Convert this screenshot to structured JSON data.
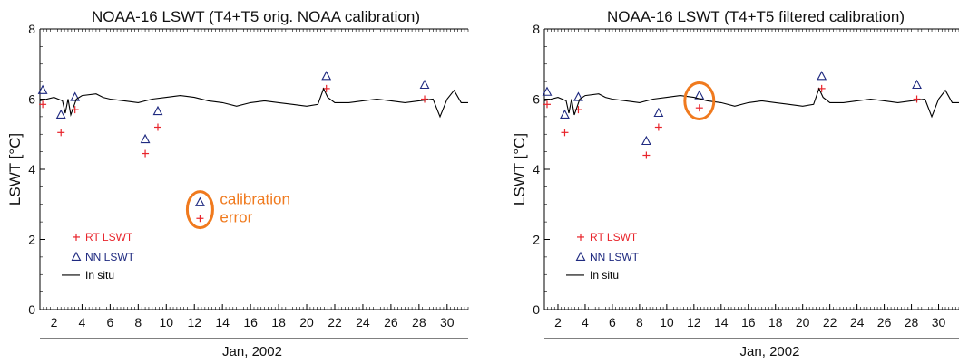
{
  "chart_data": [
    {
      "type": "scatter",
      "title": "NOAA-16 LSWT (T4+T5 orig. NOAA calibration)",
      "xlabel": "Jan, 2002",
      "ylabel": "LSWT [°C]",
      "xlim": [
        1,
        31.5
      ],
      "ylim": [
        0,
        8
      ],
      "xticks": [
        2,
        4,
        6,
        8,
        10,
        12,
        14,
        16,
        18,
        20,
        22,
        24,
        26,
        28,
        30
      ],
      "yticks": [
        0,
        2,
        4,
        6,
        8
      ],
      "legend_position": "lower-left",
      "annotation": {
        "text_line1": "calibration",
        "text_line2": "error",
        "x": 12.4,
        "y": 2.85,
        "color": "#f07a1e"
      },
      "series": [
        {
          "name": "RT LSWT",
          "marker": "plus",
          "color": "#e8242b",
          "x": [
            1.2,
            2.5,
            3.5,
            8.5,
            9.4,
            12.4,
            21.4,
            28.4
          ],
          "y": [
            5.85,
            5.05,
            5.7,
            4.45,
            5.2,
            2.6,
            6.3,
            6.0
          ]
        },
        {
          "name": "NN LSWT",
          "marker": "triangle",
          "color": "#1f2a80",
          "x": [
            1.2,
            2.5,
            3.5,
            8.5,
            9.4,
            12.4,
            21.4,
            28.4
          ],
          "y": [
            6.25,
            5.55,
            6.05,
            4.85,
            5.65,
            3.05,
            6.65,
            6.4
          ]
        },
        {
          "name": "In situ",
          "marker": "line",
          "color": "#000000",
          "x": [
            1.0,
            2.0,
            2.6,
            2.8,
            3.0,
            3.2,
            3.6,
            4.0,
            5.0,
            5.5,
            6.0,
            7.0,
            8.0,
            9.0,
            10.0,
            11.0,
            12.0,
            13.0,
            14.0,
            15.0,
            16.0,
            17.0,
            18.0,
            19.0,
            20.0,
            20.8,
            21.2,
            21.5,
            22.0,
            23.0,
            24.0,
            25.0,
            26.0,
            27.0,
            28.0,
            29.0,
            29.5,
            30.0,
            30.5,
            31.0,
            31.5
          ],
          "y": [
            5.95,
            6.05,
            5.95,
            5.6,
            6.0,
            5.55,
            6.0,
            6.1,
            6.15,
            6.05,
            6.0,
            5.95,
            5.9,
            6.0,
            6.05,
            6.1,
            6.05,
            5.95,
            5.9,
            5.8,
            5.9,
            5.95,
            5.9,
            5.85,
            5.8,
            5.85,
            6.3,
            6.05,
            5.9,
            5.9,
            5.95,
            6.0,
            5.95,
            5.9,
            5.95,
            6.0,
            5.5,
            6.0,
            6.25,
            5.9,
            5.9
          ]
        }
      ]
    },
    {
      "type": "scatter",
      "title": "NOAA-16 LSWT (T4+T5 filtered calibration)",
      "xlabel": "Jan, 2002",
      "ylabel": "LSWT [°C]",
      "xlim": [
        1,
        31.5
      ],
      "ylim": [
        0,
        8
      ],
      "xticks": [
        2,
        4,
        6,
        8,
        10,
        12,
        14,
        16,
        18,
        20,
        22,
        24,
        26,
        28,
        30
      ],
      "yticks": [
        0,
        2,
        4,
        6,
        8
      ],
      "legend_position": "lower-left",
      "highlight": {
        "x": 12.4,
        "y": 5.95,
        "color": "#f07a1e"
      },
      "series": [
        {
          "name": "RT LSWT",
          "marker": "plus",
          "color": "#e8242b",
          "x": [
            1.2,
            2.5,
            3.5,
            8.5,
            9.4,
            12.4,
            21.4,
            28.4
          ],
          "y": [
            5.85,
            5.05,
            5.7,
            4.4,
            5.2,
            5.75,
            6.3,
            6.0
          ]
        },
        {
          "name": "NN LSWT",
          "marker": "triangle",
          "color": "#1f2a80",
          "x": [
            1.2,
            2.5,
            3.5,
            8.5,
            9.4,
            12.4,
            21.4,
            28.4
          ],
          "y": [
            6.2,
            5.55,
            6.05,
            4.8,
            5.6,
            6.1,
            6.65,
            6.4
          ]
        },
        {
          "name": "In situ",
          "marker": "line",
          "color": "#000000",
          "x": [
            1.0,
            2.0,
            2.6,
            2.8,
            3.0,
            3.2,
            3.6,
            4.0,
            5.0,
            5.5,
            6.0,
            7.0,
            8.0,
            9.0,
            10.0,
            11.0,
            12.0,
            13.0,
            14.0,
            15.0,
            16.0,
            17.0,
            18.0,
            19.0,
            20.0,
            20.8,
            21.2,
            21.5,
            22.0,
            23.0,
            24.0,
            25.0,
            26.0,
            27.0,
            28.0,
            29.0,
            29.5,
            30.0,
            30.5,
            31.0,
            31.5
          ],
          "y": [
            5.95,
            6.05,
            5.95,
            5.6,
            6.0,
            5.55,
            6.0,
            6.1,
            6.15,
            6.05,
            6.0,
            5.95,
            5.9,
            6.0,
            6.05,
            6.1,
            6.05,
            5.95,
            5.9,
            5.8,
            5.9,
            5.95,
            5.9,
            5.85,
            5.8,
            5.85,
            6.3,
            6.05,
            5.9,
            5.9,
            5.95,
            6.0,
            5.95,
            5.9,
            5.95,
            6.0,
            5.5,
            6.0,
            6.25,
            5.9,
            5.9
          ]
        }
      ]
    }
  ]
}
